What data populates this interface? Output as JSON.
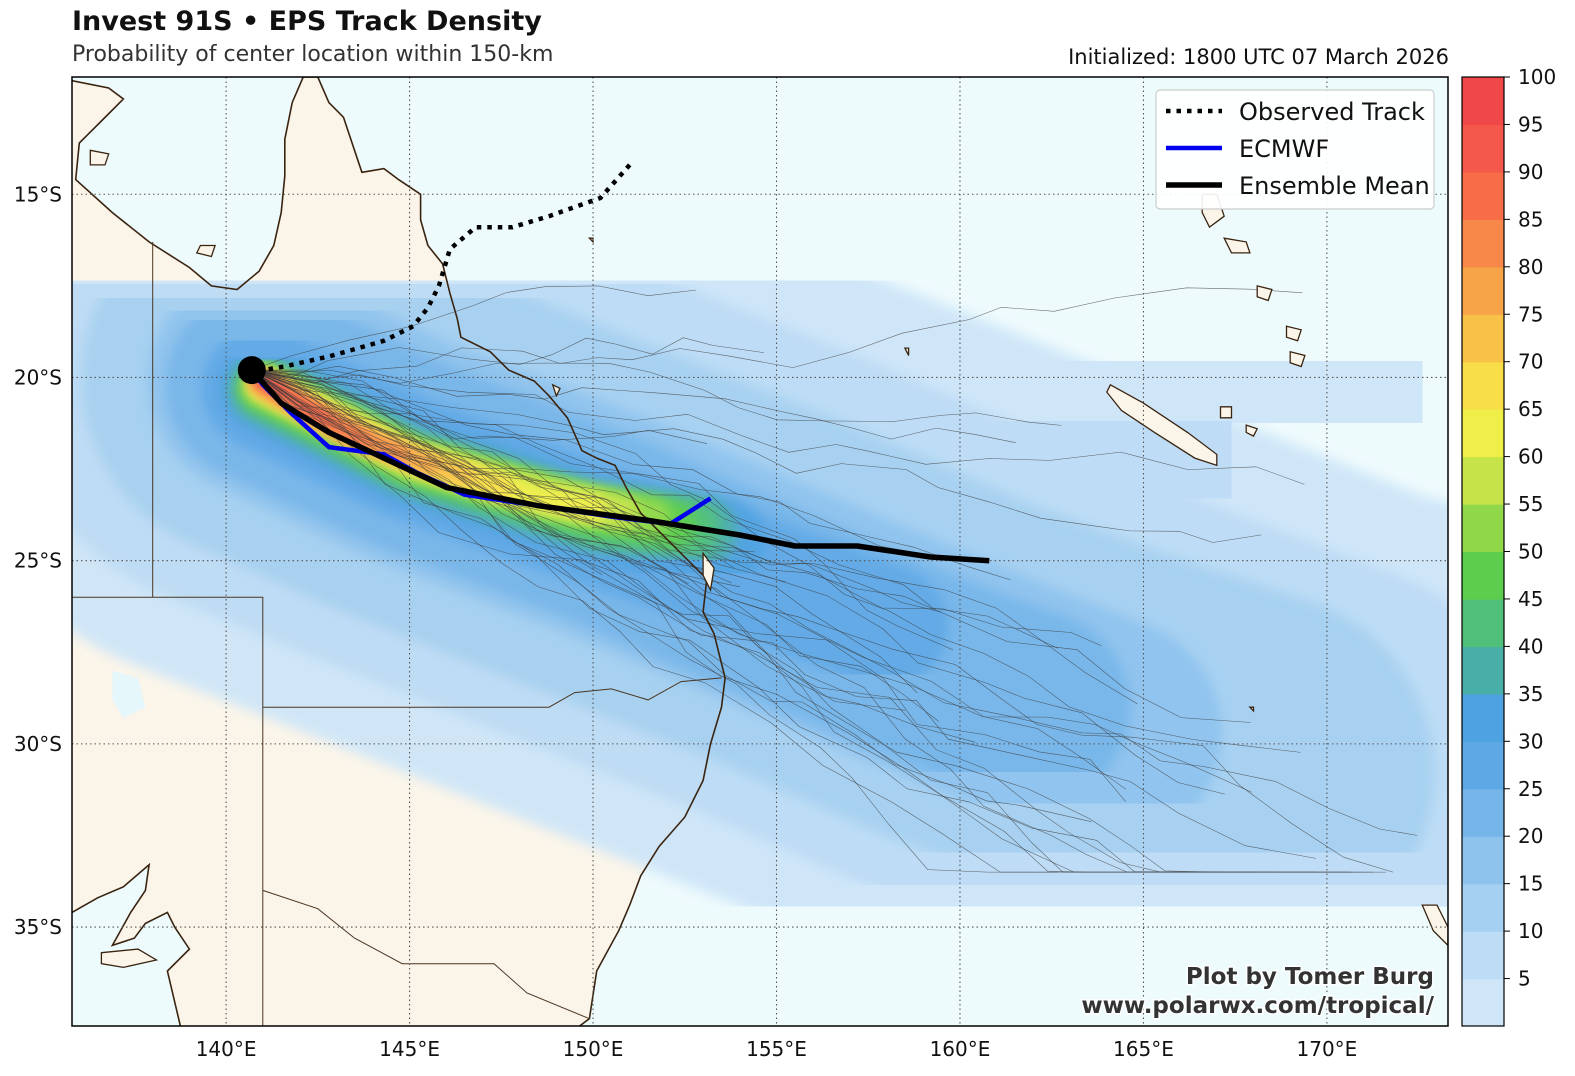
{
  "header": {
    "title": "Invest 91S • EPS Track Density",
    "subtitle": "Probability of center location within 150-km",
    "initialized": "Initialized: 1800 UTC 07 March 2026"
  },
  "map": {
    "lon_range": [
      135.8,
      173.3
    ],
    "lat_range": [
      -37.7,
      -11.8
    ],
    "lon_ticks": [
      140,
      145,
      150,
      155,
      160,
      165,
      170
    ],
    "lon_tick_labels": [
      "140°E",
      "145°E",
      "150°E",
      "155°E",
      "160°E",
      "165°E",
      "170°E"
    ],
    "lat_ticks": [
      -15,
      -20,
      -25,
      -30,
      -35
    ],
    "lat_tick_labels": [
      "15°S",
      "20°S",
      "25°S",
      "30°S",
      "35°S"
    ],
    "ocean_color": "#eefbfd",
    "land_color": "#fbf5e9",
    "coast_color": "#3a2410"
  },
  "legend": {
    "items": [
      {
        "label": "Observed Track",
        "style": "dotted",
        "color": "#000000"
      },
      {
        "label": "ECMWF",
        "style": "solid",
        "color": "#0000ee"
      },
      {
        "label": "Ensemble Mean",
        "style": "solid-thick",
        "color": "#000000"
      }
    ]
  },
  "colorbar": {
    "levels": [
      0,
      5,
      10,
      15,
      20,
      25,
      30,
      35,
      40,
      45,
      50,
      55,
      60,
      65,
      70,
      75,
      80,
      85,
      90,
      95,
      100
    ],
    "tick_labels": [
      "5",
      "10",
      "15",
      "20",
      "25",
      "30",
      "35",
      "40",
      "45",
      "50",
      "55",
      "60",
      "65",
      "70",
      "75",
      "80",
      "85",
      "90",
      "95",
      "100"
    ],
    "colors": [
      "#cfe6f8",
      "#bddcf5",
      "#a6d0f1",
      "#8ec3ee",
      "#76b5ea",
      "#5ea8e6",
      "#4fa2e2",
      "#4aaea8",
      "#50bf7a",
      "#5ccd4c",
      "#90d84a",
      "#c6e449",
      "#f0ee48",
      "#f8de48",
      "#f8c148",
      "#f7a448",
      "#f7884a",
      "#f76d48",
      "#f4584a",
      "#f04848"
    ]
  },
  "tracks": {
    "observed": [
      [
        151,
        -14.2
      ],
      [
        150.2,
        -15.1
      ],
      [
        148.8,
        -15.6
      ],
      [
        147.8,
        -15.9
      ],
      [
        146.8,
        -15.9
      ],
      [
        146.1,
        -16.5
      ],
      [
        145.8,
        -17.5
      ],
      [
        145.5,
        -18.1
      ],
      [
        145.1,
        -18.6
      ],
      [
        144.3,
        -19.0
      ],
      [
        142.9,
        -19.4
      ],
      [
        141.6,
        -19.7
      ],
      [
        141.0,
        -19.8
      ]
    ],
    "ecmwf": [
      [
        140.7,
        -19.8
      ],
      [
        141.0,
        -20.2
      ],
      [
        141.8,
        -21.0
      ],
      [
        142.8,
        -21.9
      ],
      [
        144.3,
        -22.1
      ],
      [
        145.2,
        -22.6
      ],
      [
        146.5,
        -23.2
      ],
      [
        148.5,
        -23.5
      ],
      [
        150.5,
        -23.8
      ],
      [
        152.1,
        -24.0
      ],
      [
        153.2,
        -23.3
      ]
    ],
    "ensemble_mean": [
      [
        140.7,
        -19.8
      ],
      [
        141.5,
        -20.7
      ],
      [
        142.8,
        -21.5
      ],
      [
        144.3,
        -22.2
      ],
      [
        146.0,
        -23.0
      ],
      [
        148.5,
        -23.5
      ],
      [
        151.5,
        -23.9
      ],
      [
        154.0,
        -24.3
      ],
      [
        155.5,
        -24.6
      ],
      [
        157.2,
        -24.6
      ],
      [
        159.2,
        -24.9
      ],
      [
        160.8,
        -25.0
      ]
    ],
    "start_point": [
      140.7,
      -19.8
    ]
  },
  "credit": {
    "line1": "Plot by Tomer Burg",
    "line2": "www.polarwx.com/tropical/"
  }
}
